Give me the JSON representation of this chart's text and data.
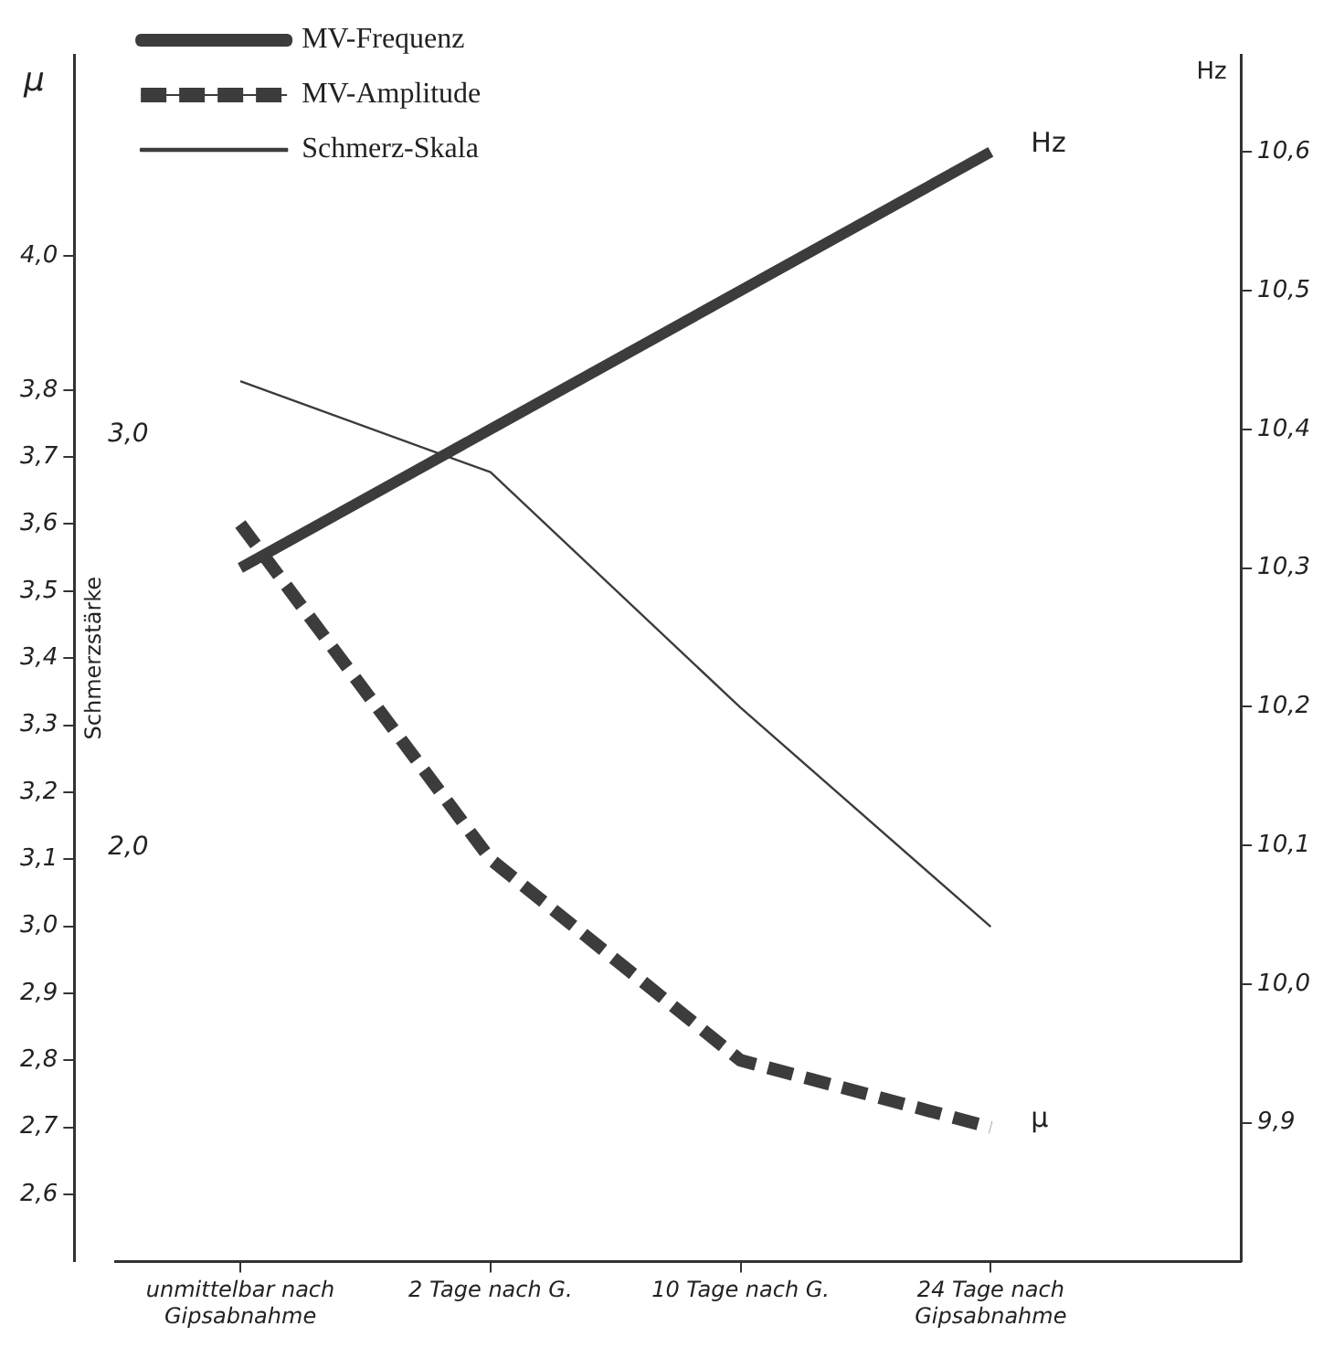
{
  "chart_data": {
    "type": "line",
    "categories": [
      "unmittelbar nach\nGipsabnahme",
      "2 Tage nach G.",
      "10 Tage nach G.",
      "24 Tage nach\nGipsabnahme"
    ],
    "series": [
      {
        "name": "MV-Frequenz",
        "color": "#3c3c3c",
        "line_style": "solid",
        "axis": "y3",
        "values": [
          10.3,
          10.4,
          10.5,
          10.6
        ]
      },
      {
        "name": "MV-Amplitude",
        "color": "#3c3c3c",
        "line_style": "dashed",
        "values": [
          3.6,
          3.1,
          2.8,
          2.7
        ]
      },
      {
        "name": "Schmerz-Skala",
        "color": "#3c3c3c",
        "line_style": "solid",
        "axis": "y2",
        "values": [
          3.13,
          2.91,
          2.34,
          1.81
        ]
      }
    ],
    "ylabel": "μ",
    "y2label": "Schmerzstärke",
    "y3label": "Hz",
    "ylim": [
      2.5,
      4.3
    ],
    "yticks": [
      {
        "value": 2.6,
        "label": "2,6"
      },
      {
        "value": 2.7,
        "label": "2,7"
      },
      {
        "value": 2.8,
        "label": "2,8"
      },
      {
        "value": 2.9,
        "label": "2,9"
      },
      {
        "value": 3.0,
        "label": "3,0"
      },
      {
        "value": 3.1,
        "label": "3,1"
      },
      {
        "value": 3.2,
        "label": "3,2"
      },
      {
        "value": 3.3,
        "label": "3,3"
      },
      {
        "value": 3.4,
        "label": "3,4"
      },
      {
        "value": 3.5,
        "label": "3,5"
      },
      {
        "value": 3.6,
        "label": "3,6"
      },
      {
        "value": 3.7,
        "label": "3,7"
      },
      {
        "value": 3.8,
        "label": "3,8"
      },
      {
        "value": 4.0,
        "label": "4,0"
      }
    ],
    "y2lim": [
      1.0,
      3.92
    ],
    "y2ticks": [
      {
        "value": 2.0,
        "label": "2,0"
      },
      {
        "value": 3.0,
        "label": "3,0"
      }
    ],
    "y3lim": [
      9.8,
      10.67
    ],
    "y3ticks": [
      {
        "value": 9.9,
        "label": "9,9"
      },
      {
        "value": 10.0,
        "label": "10,0"
      },
      {
        "value": 10.1,
        "label": "10,1"
      },
      {
        "value": 10.2,
        "label": "10,2"
      },
      {
        "value": 10.3,
        "label": "10,3"
      },
      {
        "value": 10.4,
        "label": "10,4"
      },
      {
        "value": 10.5,
        "label": "10,5"
      },
      {
        "value": 10.6,
        "label": "10,6"
      }
    ],
    "annotations": [
      "Hz",
      "μ"
    ],
    "grid": false,
    "legend": "top left",
    "marker": "none"
  }
}
